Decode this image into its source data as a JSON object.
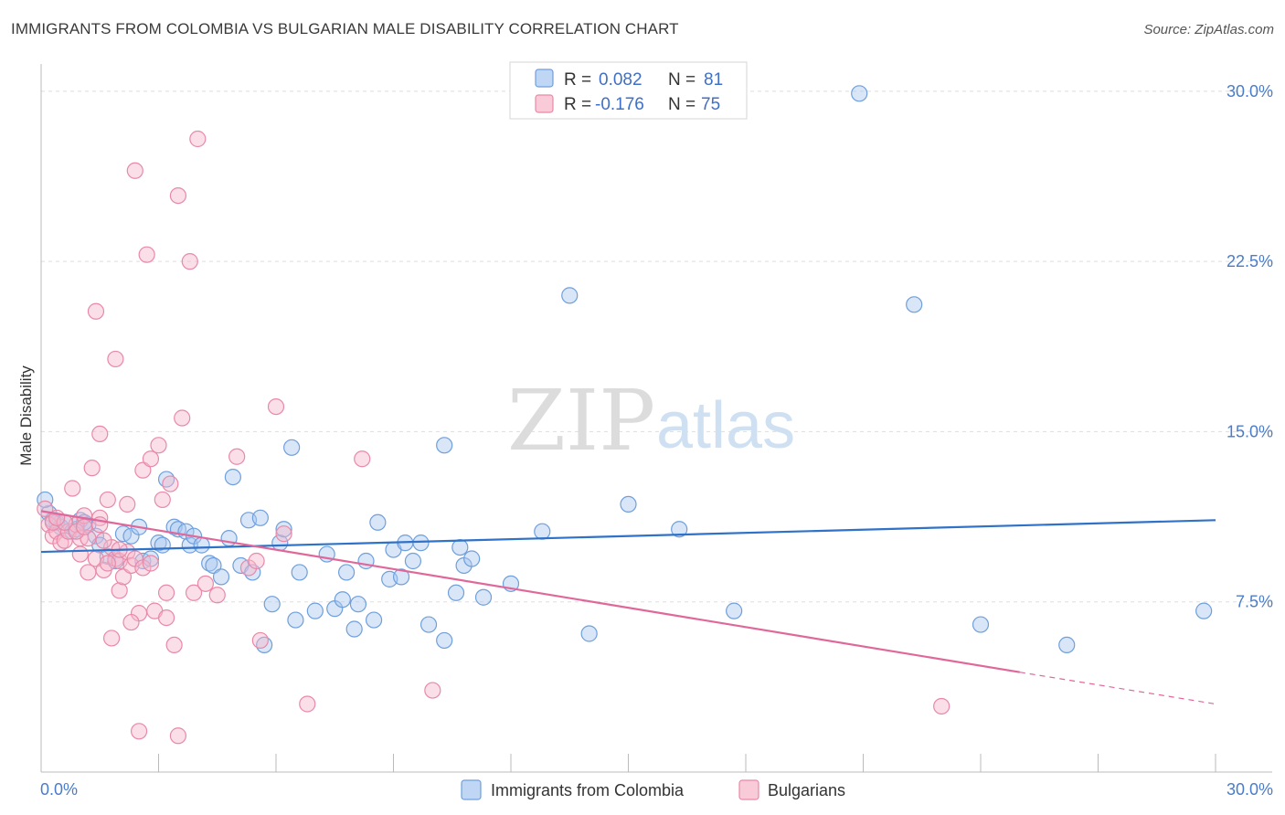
{
  "title": "IMMIGRANTS FROM COLOMBIA VS BULGARIAN MALE DISABILITY CORRELATION CHART",
  "source": "Source: ZipAtlas.com",
  "watermark": {
    "zip": "ZIP",
    "atlas": "atlas"
  },
  "colors": {
    "blue_fill": "#a9c8f0",
    "blue_stroke": "#6f9fdc",
    "blue_line": "#2f72c8",
    "pink_fill": "#f7b9cc",
    "pink_stroke": "#e889a8",
    "pink_line": "#e0679a",
    "grid": "#dddddd",
    "tick_text": "#4a7cc9"
  },
  "legend": {
    "rows": [
      {
        "r_label": "R =",
        "r_value": "0.082",
        "n_label": "N =",
        "n_value": "81"
      },
      {
        "r_label": "R =",
        "r_value": "-0.176",
        "n_label": "N =",
        "n_value": "75"
      }
    ]
  },
  "chart_data": {
    "type": "scatter",
    "xlabel": "",
    "ylabel": "Male Disability",
    "xlim": [
      0,
      30
    ],
    "ylim": [
      0,
      31
    ],
    "x_tick_labels": [
      "0.0%",
      "30.0%"
    ],
    "y_ticks": [
      7.5,
      15.0,
      22.5,
      30.0
    ],
    "y_tick_labels": [
      "7.5%",
      "15.0%",
      "22.5%",
      "30.0%"
    ],
    "grid": "horizontal dashed",
    "legend_position": "top-center",
    "series": [
      {
        "name": "Immigrants from Colombia",
        "trend": {
          "x": [
            0,
            30
          ],
          "y": [
            9.7,
            11.1
          ]
        },
        "points": [
          [
            0.2,
            11.4
          ],
          [
            0.4,
            11.0
          ],
          [
            0.5,
            10.8
          ],
          [
            0.6,
            11.0
          ],
          [
            0.8,
            10.6
          ],
          [
            1.0,
            11.1
          ],
          [
            1.2,
            10.9
          ],
          [
            1.4,
            10.4
          ],
          [
            1.5,
            10.0
          ],
          [
            1.7,
            9.5
          ],
          [
            1.9,
            9.3
          ],
          [
            2.1,
            10.5
          ],
          [
            2.3,
            10.4
          ],
          [
            2.5,
            10.8
          ],
          [
            2.6,
            9.3
          ],
          [
            2.8,
            9.4
          ],
          [
            3.0,
            10.1
          ],
          [
            3.1,
            10.0
          ],
          [
            3.2,
            12.9
          ],
          [
            3.4,
            10.8
          ],
          [
            3.5,
            10.7
          ],
          [
            3.7,
            10.6
          ],
          [
            3.8,
            10.0
          ],
          [
            3.9,
            10.4
          ],
          [
            4.1,
            10.0
          ],
          [
            4.3,
            9.2
          ],
          [
            4.4,
            9.1
          ],
          [
            4.6,
            8.6
          ],
          [
            4.8,
            10.3
          ],
          [
            4.9,
            13.0
          ],
          [
            5.1,
            9.1
          ],
          [
            5.3,
            11.1
          ],
          [
            5.4,
            8.8
          ],
          [
            5.6,
            11.2
          ],
          [
            5.7,
            5.6
          ],
          [
            5.9,
            7.4
          ],
          [
            6.1,
            10.1
          ],
          [
            6.2,
            10.7
          ],
          [
            6.4,
            14.3
          ],
          [
            6.6,
            8.8
          ],
          [
            6.5,
            6.7
          ],
          [
            7.0,
            7.1
          ],
          [
            7.3,
            9.6
          ],
          [
            7.5,
            7.2
          ],
          [
            7.7,
            7.6
          ],
          [
            7.8,
            8.8
          ],
          [
            8.0,
            6.3
          ],
          [
            8.1,
            7.4
          ],
          [
            8.3,
            9.3
          ],
          [
            8.5,
            6.7
          ],
          [
            8.6,
            11.0
          ],
          [
            8.9,
            8.5
          ],
          [
            9.0,
            9.8
          ],
          [
            9.2,
            8.6
          ],
          [
            9.3,
            10.1
          ],
          [
            9.5,
            9.3
          ],
          [
            9.7,
            10.1
          ],
          [
            9.9,
            6.5
          ],
          [
            10.3,
            5.8
          ],
          [
            10.3,
            14.4
          ],
          [
            10.6,
            7.9
          ],
          [
            10.7,
            9.9
          ],
          [
            10.8,
            9.1
          ],
          [
            11.0,
            9.4
          ],
          [
            11.3,
            7.7
          ],
          [
            12.0,
            8.3
          ],
          [
            12.8,
            10.6
          ],
          [
            13.5,
            21.0
          ],
          [
            14.0,
            6.1
          ],
          [
            15.0,
            11.8
          ],
          [
            16.3,
            10.7
          ],
          [
            17.7,
            7.1
          ],
          [
            20.9,
            29.9
          ],
          [
            22.3,
            20.6
          ],
          [
            24.0,
            6.5
          ],
          [
            26.2,
            5.6
          ],
          [
            29.7,
            7.1
          ],
          [
            0.1,
            12.0
          ],
          [
            0.3,
            11.1
          ],
          [
            0.9,
            10.7
          ],
          [
            1.1,
            11.0
          ]
        ]
      },
      {
        "name": "Bulgarians",
        "trend": {
          "x": [
            0,
            25
          ],
          "y": [
            11.5,
            4.4
          ]
        },
        "trend_extension": {
          "x": [
            25,
            30
          ],
          "y": [
            4.4,
            3.0
          ]
        },
        "points": [
          [
            0.1,
            11.6
          ],
          [
            0.2,
            10.9
          ],
          [
            0.3,
            10.4
          ],
          [
            0.4,
            10.6
          ],
          [
            0.5,
            10.1
          ],
          [
            0.6,
            10.2
          ],
          [
            0.7,
            10.6
          ],
          [
            0.8,
            12.5
          ],
          [
            0.9,
            10.9
          ],
          [
            1.0,
            10.3
          ],
          [
            1.0,
            9.6
          ],
          [
            1.1,
            11.3
          ],
          [
            1.2,
            8.8
          ],
          [
            1.3,
            13.4
          ],
          [
            1.4,
            9.4
          ],
          [
            1.5,
            11.2
          ],
          [
            1.5,
            14.9
          ],
          [
            1.6,
            8.9
          ],
          [
            1.7,
            12.0
          ],
          [
            1.8,
            9.9
          ],
          [
            1.9,
            9.4
          ],
          [
            1.9,
            18.2
          ],
          [
            2.0,
            9.3
          ],
          [
            2.0,
            8.0
          ],
          [
            2.1,
            8.6
          ],
          [
            2.2,
            9.7
          ],
          [
            2.3,
            9.1
          ],
          [
            2.4,
            9.4
          ],
          [
            2.5,
            7.0
          ],
          [
            2.6,
            13.3
          ],
          [
            2.7,
            22.8
          ],
          [
            2.8,
            13.8
          ],
          [
            2.9,
            7.1
          ],
          [
            3.0,
            14.4
          ],
          [
            3.1,
            12.0
          ],
          [
            3.2,
            7.9
          ],
          [
            3.2,
            6.8
          ],
          [
            3.3,
            12.7
          ],
          [
            3.4,
            5.6
          ],
          [
            3.5,
            25.4
          ],
          [
            3.6,
            15.6
          ],
          [
            3.9,
            7.9
          ],
          [
            4.0,
            27.9
          ],
          [
            4.2,
            8.3
          ],
          [
            4.5,
            7.8
          ],
          [
            5.0,
            13.9
          ],
          [
            5.3,
            9.0
          ],
          [
            5.5,
            9.3
          ],
          [
            5.6,
            5.8
          ],
          [
            6.0,
            16.1
          ],
          [
            6.2,
            10.5
          ],
          [
            6.8,
            3.0
          ],
          [
            8.2,
            13.8
          ],
          [
            10.0,
            3.6
          ],
          [
            23.0,
            2.9
          ],
          [
            0.3,
            11.0
          ],
          [
            0.6,
            11.0
          ],
          [
            1.6,
            10.2
          ],
          [
            2.4,
            26.5
          ],
          [
            2.2,
            11.8
          ],
          [
            1.4,
            20.3
          ],
          [
            1.8,
            5.9
          ],
          [
            2.3,
            6.6
          ],
          [
            2.6,
            9.0
          ],
          [
            3.8,
            22.5
          ],
          [
            2.5,
            1.8
          ],
          [
            3.5,
            1.6
          ],
          [
            1.2,
            10.3
          ],
          [
            0.9,
            10.6
          ],
          [
            2.0,
            9.8
          ],
          [
            1.7,
            9.2
          ],
          [
            2.8,
            9.2
          ],
          [
            1.1,
            10.8
          ],
          [
            0.4,
            11.2
          ],
          [
            1.5,
            10.9
          ]
        ]
      }
    ]
  }
}
